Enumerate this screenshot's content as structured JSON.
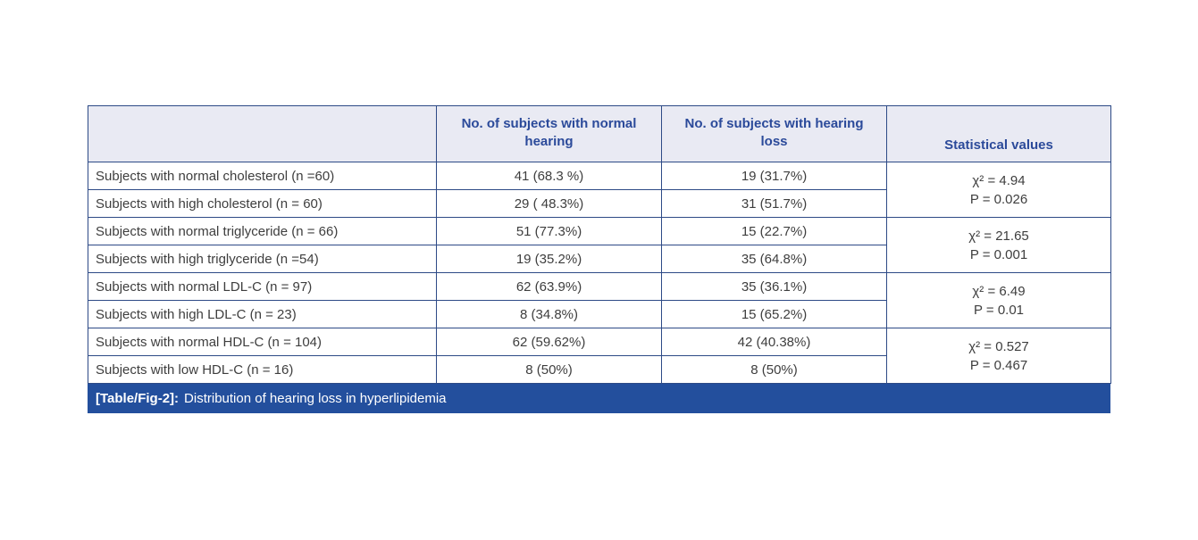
{
  "colors": {
    "border": "#2d4a86",
    "header_bg": "#e9eaf3",
    "header_text": "#2b4a9a",
    "body_text": "#3e3e3e",
    "caption_bg": "#234f9d",
    "caption_text": "#ffffff"
  },
  "table": {
    "columns": {
      "label": "",
      "normal_hearing": "No. of subjects with normal hearing",
      "hearing_loss": "No. of subjects with hearing loss",
      "statistical": "Statistical values"
    },
    "groups": [
      {
        "rows": [
          {
            "label": "Subjects with normal cholesterol (n =60)",
            "normal": "41 (68.3 %)",
            "loss": "19 (31.7%)"
          },
          {
            "label": "Subjects with high cholesterol (n = 60)",
            "normal": "29 ( 48.3%)",
            "loss": "31 (51.7%)"
          }
        ],
        "stat": {
          "chi": "χ² = 4.94",
          "p": "P = 0.026"
        }
      },
      {
        "rows": [
          {
            "label": "Subjects with normal triglyceride (n = 66)",
            "normal": "51 (77.3%)",
            "loss": "15 (22.7%)"
          },
          {
            "label": "Subjects with high triglyceride (n =54)",
            "normal": "19 (35.2%)",
            "loss": "35 (64.8%)"
          }
        ],
        "stat": {
          "chi": "χ² = 21.65",
          "p": "P = 0.001"
        }
      },
      {
        "rows": [
          {
            "label": "Subjects with normal LDL-C (n = 97)",
            "normal": "62 (63.9%)",
            "loss": "35 (36.1%)"
          },
          {
            "label": "Subjects with high LDL-C (n = 23)",
            "normal": "8 (34.8%)",
            "loss": "15 (65.2%)"
          }
        ],
        "stat": {
          "chi": "χ² = 6.49",
          "p": "P = 0.01"
        }
      },
      {
        "rows": [
          {
            "label": "Subjects with normal HDL-C (n = 104)",
            "normal": "62 (59.62%)",
            "loss": "42 (40.38%)"
          },
          {
            "label": "Subjects with low HDL-C (n = 16)",
            "normal": "8 (50%)",
            "loss": "8 (50%)"
          }
        ],
        "stat": {
          "chi": "χ² = 0.527",
          "p": "P = 0.467"
        }
      }
    ],
    "caption": {
      "prefix": "[Table/Fig-2]:",
      "text": "Distribution of hearing loss in hyperlipidemia"
    }
  }
}
